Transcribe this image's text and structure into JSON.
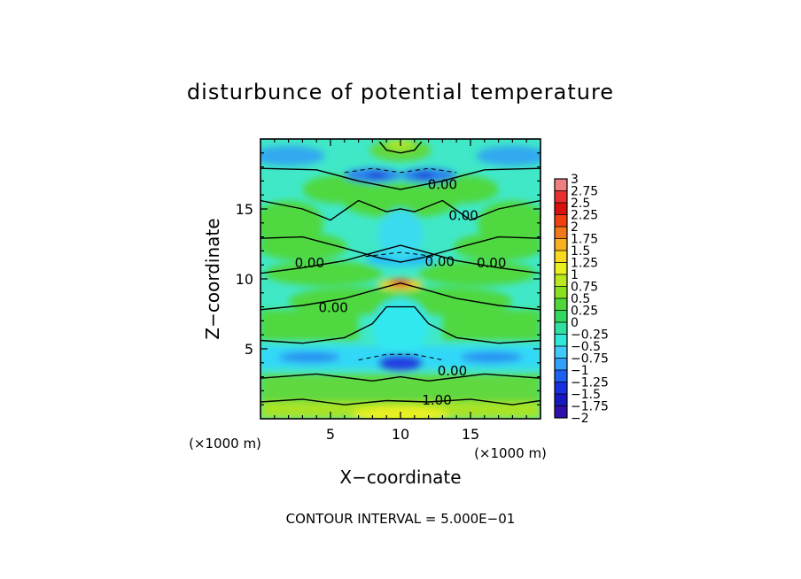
{
  "chart_data": {
    "type": "heatmap",
    "title": "disturbunce of potential temperature",
    "xlabel": "X−coordinate",
    "ylabel": "Z−coordinate",
    "x_unit": "(×1000 m)",
    "z_unit": "(×1000 m)",
    "xlim": [
      0,
      20
    ],
    "ylim": [
      0,
      20
    ],
    "x_ticks": [
      {
        "value": 5,
        "label": "5"
      },
      {
        "value": 10,
        "label": "10"
      },
      {
        "value": 15,
        "label": "15"
      }
    ],
    "y_ticks": [
      {
        "value": 5,
        "label": "5"
      },
      {
        "value": 10,
        "label": "10"
      },
      {
        "value": 15,
        "label": "15"
      }
    ],
    "contour_interval_text": "CONTOUR INTERVAL = 5.000E−01",
    "contour_labels": [
      {
        "x": 13.0,
        "z": 16.7,
        "text": "0.00"
      },
      {
        "x": 14.5,
        "z": 14.5,
        "text": "0.00"
      },
      {
        "x": 3.5,
        "z": 11.1,
        "text": "0.00"
      },
      {
        "x": 12.8,
        "z": 11.2,
        "text": "0.00"
      },
      {
        "x": 16.5,
        "z": 11.1,
        "text": "0.00"
      },
      {
        "x": 5.2,
        "z": 7.9,
        "text": "0.00"
      },
      {
        "x": 13.7,
        "z": 3.4,
        "text": "0.00"
      },
      {
        "x": 12.6,
        "z": 1.3,
        "text": "1.00"
      }
    ],
    "colorbar": {
      "levels": [
        3,
        2.75,
        2.5,
        2.25,
        2,
        1.75,
        1.5,
        1.25,
        1,
        0.75,
        0.5,
        0.25,
        0,
        -0.25,
        -0.5,
        -0.75,
        -1,
        -1.25,
        -1.5,
        -1.75,
        -2
      ],
      "labels": [
        "3",
        "2.75",
        "2.5",
        "2.25",
        "2",
        "1.75",
        "1.5",
        "1.25",
        "1",
        "0.75",
        "0.5",
        "0.25",
        "0",
        "−0.25",
        "−0.5",
        "−0.75",
        "−1",
        "−1.25",
        "−1.5",
        "−1.75",
        "−2"
      ],
      "colors": [
        "#f08080",
        "#e83030",
        "#d81010",
        "#f04010",
        "#f07818",
        "#f8b020",
        "#f8d820",
        "#e8f020",
        "#b8e820",
        "#88e020",
        "#50d838",
        "#30d860",
        "#30e0a0",
        "#30e8d8",
        "#40c8f8",
        "#30a0f8",
        "#2060f0",
        "#1830e0",
        "#1818c0",
        "#3010a8",
        "#6010a8"
      ]
    }
  }
}
